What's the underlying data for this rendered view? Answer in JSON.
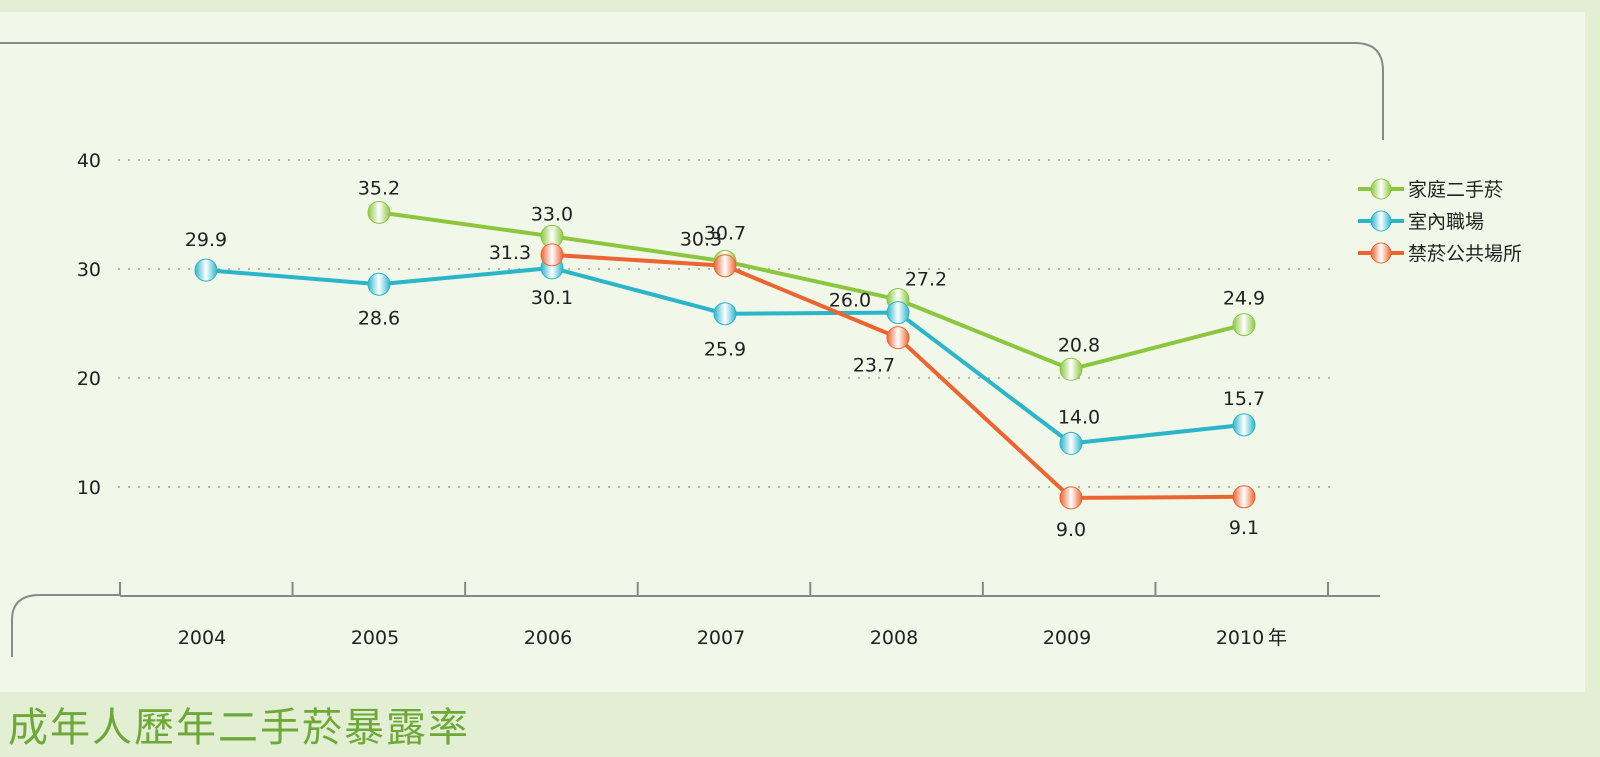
{
  "chart_data": {
    "type": "line",
    "title": "成年人歷年二手菸暴露率",
    "xlabel": "年",
    "ylabel": "",
    "categories": [
      "2004",
      "2005",
      "2006",
      "2007",
      "2008",
      "2009",
      "2010"
    ],
    "yticks": [
      "10",
      "20",
      "30",
      "40"
    ],
    "ylim": [
      0,
      42
    ],
    "grid": true,
    "legend_position": "right",
    "series": [
      {
        "name": "家庭二手菸",
        "color": "#8cc63f",
        "values": [
          null,
          35.2,
          33.0,
          30.7,
          27.2,
          20.8,
          24.9
        ],
        "labels": [
          "",
          "35.2",
          "33.0",
          "30.7",
          "27.2",
          "20.8",
          "24.9"
        ]
      },
      {
        "name": "室內職場",
        "color": "#2bb5c9",
        "values": [
          29.9,
          28.6,
          30.1,
          25.9,
          26.0,
          14.0,
          15.7
        ],
        "labels": [
          "29.9",
          "28.6",
          "30.1",
          "25.9",
          "26.0",
          "14.0",
          "15.7"
        ]
      },
      {
        "name": "禁菸公共場所",
        "color": "#ec6430",
        "values": [
          null,
          null,
          31.3,
          30.3,
          23.7,
          9.0,
          9.1
        ],
        "labels": [
          "",
          "",
          "31.3",
          "30.3",
          "23.7",
          "9.0",
          "9.1"
        ]
      }
    ]
  }
}
